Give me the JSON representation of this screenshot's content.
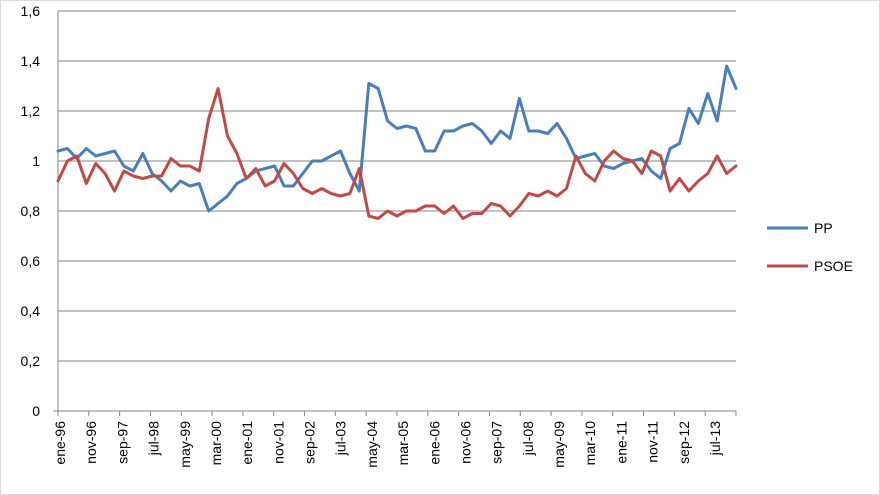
{
  "chart_data": {
    "type": "line",
    "title": "",
    "xlabel": "",
    "ylabel": "",
    "ylim": [
      0,
      1.6
    ],
    "y_ticks": [
      "0",
      "0,2",
      "0,4",
      "0,6",
      "0,8",
      "1",
      "1,2",
      "1,4",
      "1,6"
    ],
    "x_tick_labels": [
      "ene-96",
      "nov-96",
      "sep-97",
      "jul-98",
      "may-99",
      "mar-00",
      "ene-01",
      "nov-01",
      "sep-02",
      "jul-03",
      "may-04",
      "mar-05",
      "ene-06",
      "nov-06",
      "sep-07",
      "jul-08",
      "may-09",
      "mar-10",
      "ene-11",
      "nov-11",
      "sep-12",
      "jul-13"
    ],
    "grid": "horizontal",
    "legend_position": "right",
    "series": [
      {
        "name": "PP",
        "color": "#4A7EBB",
        "values": [
          1.04,
          1.05,
          1.01,
          1.05,
          1.02,
          1.03,
          1.04,
          0.98,
          0.96,
          1.03,
          0.95,
          0.92,
          0.88,
          0.92,
          0.9,
          0.91,
          0.8,
          0.83,
          0.86,
          0.91,
          0.93,
          0.96,
          0.97,
          0.98,
          0.9,
          0.9,
          0.95,
          1.0,
          1.0,
          1.02,
          1.04,
          0.95,
          0.88,
          1.31,
          1.29,
          1.16,
          1.13,
          1.14,
          1.13,
          1.04,
          1.04,
          1.12,
          1.12,
          1.14,
          1.15,
          1.12,
          1.07,
          1.12,
          1.09,
          1.25,
          1.12,
          1.12,
          1.11,
          1.15,
          1.09,
          1.01,
          1.02,
          1.03,
          0.98,
          0.97,
          0.99,
          1.0,
          1.01,
          0.96,
          0.93,
          1.05,
          1.07,
          1.21,
          1.15,
          1.27,
          1.16,
          1.38,
          1.29
        ]
      },
      {
        "name": "PSOE",
        "color": "#BE4B48",
        "values": [
          0.92,
          1.0,
          1.02,
          0.91,
          0.99,
          0.95,
          0.88,
          0.96,
          0.94,
          0.93,
          0.94,
          0.94,
          1.01,
          0.98,
          0.98,
          0.96,
          1.17,
          1.29,
          1.1,
          1.03,
          0.93,
          0.97,
          0.9,
          0.92,
          0.99,
          0.95,
          0.89,
          0.87,
          0.89,
          0.87,
          0.86,
          0.87,
          0.97,
          0.78,
          0.77,
          0.8,
          0.78,
          0.8,
          0.8,
          0.82,
          0.82,
          0.79,
          0.82,
          0.77,
          0.79,
          0.79,
          0.83,
          0.82,
          0.78,
          0.82,
          0.87,
          0.86,
          0.88,
          0.86,
          0.89,
          1.02,
          0.95,
          0.92,
          1.0,
          1.04,
          1.01,
          1.0,
          0.95,
          1.04,
          1.02,
          0.88,
          0.93,
          0.88,
          0.92,
          0.95,
          1.02,
          0.95,
          0.98
        ]
      }
    ]
  }
}
